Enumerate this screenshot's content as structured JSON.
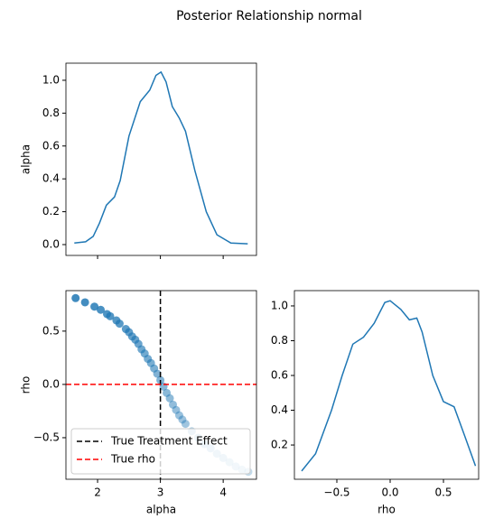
{
  "title": "Posterior Relationship normal",
  "chart_data": [
    {
      "type": "line",
      "ylabel": "alpha",
      "show_xtick_labels": false,
      "x": [
        1.63,
        1.81,
        1.93,
        2.03,
        2.14,
        2.27,
        2.36,
        2.5,
        2.68,
        2.83,
        2.93,
        3.01,
        3.09,
        3.19,
        3.3,
        3.4,
        3.55,
        3.73,
        3.9,
        4.12,
        4.39
      ],
      "y": [
        0.01,
        0.017,
        0.05,
        0.13,
        0.24,
        0.29,
        0.39,
        0.66,
        0.87,
        0.94,
        1.03,
        1.05,
        0.99,
        0.84,
        0.77,
        0.69,
        0.45,
        0.2,
        0.06,
        0.01,
        0.005
      ],
      "color": "#1f77b4",
      "xlim": [
        1.496,
        4.53
      ],
      "xticks": [
        2,
        3,
        4
      ],
      "ylim": [
        -0.066,
        1.104
      ],
      "yticks": [
        {
          "value": 0,
          "label": "0.0"
        },
        0.2,
        0.4,
        0.6,
        0.8,
        {
          "value": 1,
          "label": "1.0"
        }
      ]
    },
    {
      "type": "scatter",
      "xlabel": "alpha",
      "ylabel": "rho",
      "color": "#1f77b4",
      "x": [
        1.65,
        1.8,
        1.95,
        2.05,
        2.15,
        2.2,
        2.3,
        2.35,
        2.45,
        2.5,
        2.55,
        2.6,
        2.65,
        2.7,
        2.75,
        2.8,
        2.85,
        2.9,
        2.95,
        3.0,
        3.05,
        3.1,
        3.15,
        3.2,
        3.25,
        3.3,
        3.35,
        3.4,
        3.5,
        3.6,
        3.7,
        3.8,
        3.9,
        4.0,
        4.1,
        4.2,
        4.3,
        4.4
      ],
      "y": [
        0.81,
        0.77,
        0.73,
        0.7,
        0.66,
        0.64,
        0.6,
        0.57,
        0.52,
        0.49,
        0.45,
        0.42,
        0.38,
        0.33,
        0.29,
        0.24,
        0.2,
        0.15,
        0.1,
        0.04,
        -0.02,
        -0.08,
        -0.13,
        -0.19,
        -0.24,
        -0.29,
        -0.33,
        -0.37,
        -0.44,
        -0.5,
        -0.56,
        -0.6,
        -0.65,
        -0.69,
        -0.73,
        -0.77,
        -0.8,
        -0.82
      ],
      "xlim": [
        1.496,
        4.53
      ],
      "xticks": [
        2,
        3,
        4
      ],
      "ylim": [
        -0.89,
        0.88
      ],
      "yticks": [
        {
          "value": -0.5,
          "label": "−0.5"
        },
        {
          "value": 0,
          "label": "0.0"
        },
        0.5
      ],
      "vlines": [
        {
          "name": "True Treatment Effect",
          "x": 3,
          "color": "black"
        }
      ],
      "hlines": [
        {
          "name": "True rho",
          "y": 0,
          "color": "red"
        }
      ],
      "legend": "lower left"
    },
    {
      "type": "line",
      "xlabel": "rho",
      "color": "#1f77b4",
      "x": [
        -0.83,
        -0.7,
        -0.55,
        -0.45,
        -0.35,
        -0.25,
        -0.15,
        -0.05,
        0.0,
        0.1,
        0.18,
        0.25,
        0.3,
        0.4,
        0.5,
        0.6,
        0.7,
        0.8
      ],
      "y": [
        0.05,
        0.15,
        0.4,
        0.6,
        0.78,
        0.82,
        0.9,
        1.02,
        1.03,
        0.98,
        0.92,
        0.93,
        0.85,
        0.6,
        0.45,
        0.42,
        0.25,
        0.08
      ],
      "xlim": [
        -0.898,
        0.83
      ],
      "xticks": [
        {
          "value": -0.5,
          "label": "−0.5"
        },
        {
          "value": 0,
          "label": "0.0"
        },
        0.5
      ],
      "ylim": [
        0.003,
        1.088
      ],
      "yticks": [
        0.2,
        0.4,
        0.6,
        0.8,
        {
          "value": 1,
          "label": "1.0"
        }
      ]
    }
  ]
}
